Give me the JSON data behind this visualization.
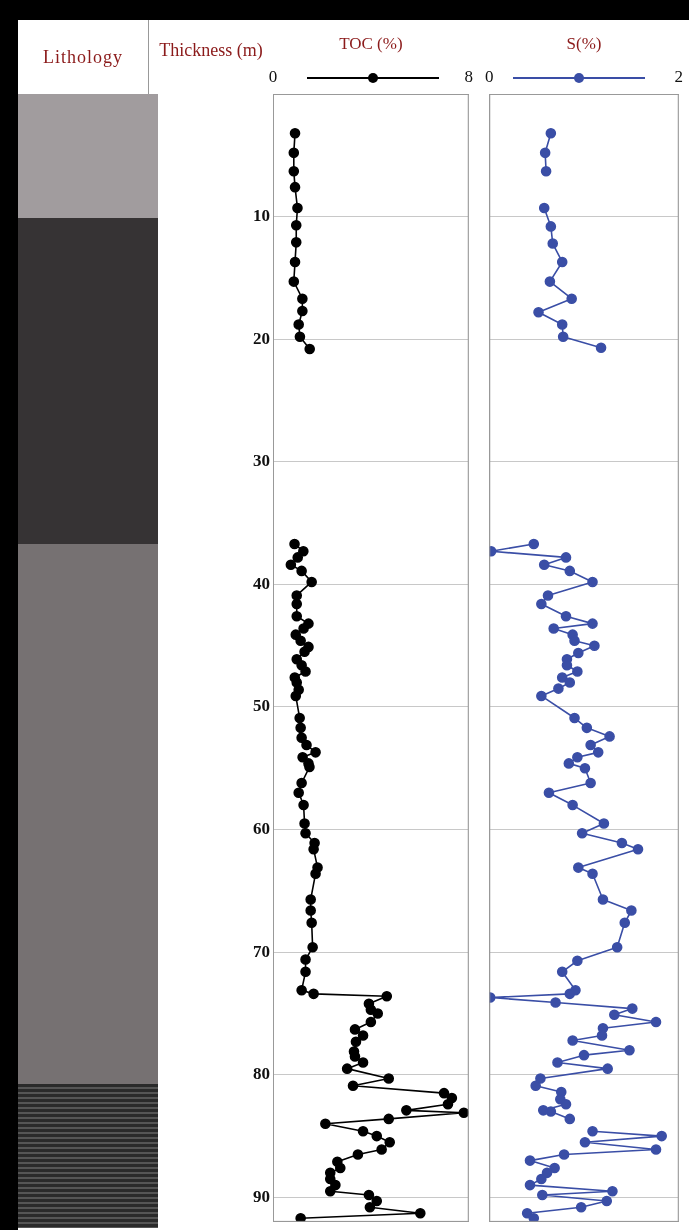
{
  "chart_data": [
    {
      "type": "line",
      "orientation": "horizontal",
      "xlabel": "TOC (%)",
      "ylabel": "Thickness (m)",
      "annotations": [
        "Lithology"
      ],
      "xlim": [
        0,
        8
      ],
      "xticks": [
        0,
        8
      ],
      "ylim": [
        92,
        0
      ],
      "yticks": [
        10,
        20,
        30,
        40,
        50,
        60,
        70,
        80,
        90
      ],
      "grid": true,
      "legend": false,
      "marker": "circle",
      "line_style": "solid",
      "series": [
        {
          "color": "#000000",
          "x": [
            3.2,
            4.8,
            6.3,
            7.6,
            9.3,
            10.7,
            12.1,
            13.7,
            15.3,
            16.7,
            17.7,
            18.8,
            19.8,
            20.8,
            28,
            36.7,
            37.3,
            37.8,
            38.4,
            38.9,
            39.8,
            40.9,
            41.6,
            42.6,
            43.2,
            43.6,
            44.1,
            44.6,
            45.1,
            45.5,
            46.1,
            46.6,
            47.1,
            47.6,
            48.0,
            48.6,
            49.1,
            50.9,
            51.7,
            52.5,
            53.1,
            53.7,
            54.1,
            54.6,
            54.9,
            56.2,
            57.0,
            58.0,
            59.5,
            60.3,
            61.1,
            61.6,
            63.1,
            63.6,
            65.7,
            66.6,
            67.6,
            69.6,
            70.6,
            71.6,
            73.1,
            73.4,
            73.6,
            74.2,
            74.7,
            75.0,
            75.7,
            76.3,
            76.8,
            77.3,
            78.1,
            78.5,
            79.0,
            79.5,
            80.3,
            80.9,
            81.5,
            81.9,
            82.4,
            82.9,
            83.1,
            83.6,
            84.0,
            84.6,
            85.0,
            85.5,
            86.1,
            86.5,
            87.1,
            87.6,
            88.0,
            88.5,
            89.0,
            89.5,
            89.8,
            90.3,
            90.8,
            91.3,
            91.7
          ],
          "values": [
            0.9,
            0.85,
            0.85,
            0.9,
            1.0,
            0.95,
            0.95,
            0.9,
            0.85,
            1.2,
            1.2,
            1.05,
            1.1,
            1.5,
            null,
            0.88,
            1.24,
            1.01,
            0.73,
            1.17,
            1.58,
            0.97,
            0.97,
            0.97,
            1.45,
            1.25,
            0.93,
            1.13,
            1.45,
            1.29,
            0.97,
            1.17,
            1.33,
            0.89,
            0.97,
            1.05,
            0.93,
            1.09,
            1.13,
            1.17,
            1.37,
            1.74,
            1.21,
            1.45,
            1.49,
            1.17,
            1.05,
            1.25,
            1.29,
            1.33,
            1.7,
            1.66,
            1.82,
            1.74,
            1.54,
            1.54,
            1.58,
            1.62,
            1.33,
            1.33,
            1.17,
            1.66,
            4.65,
            3.92,
            4.0,
            4.28,
            4.0,
            3.35,
            3.68,
            3.39,
            3.31,
            3.35,
            3.68,
            3.03,
            4.73,
            3.27,
            6.99,
            7.31,
            7.15,
            5.45,
            7.8,
            4.73,
            2.14,
            3.68,
            4.24,
            4.77,
            4.44,
            3.47,
            2.63,
            2.75,
            2.34,
            2.34,
            2.55,
            2.34,
            3.92,
            4.24,
            3.96,
            6.02,
            1.13
          ]
        }
      ]
    },
    {
      "type": "line",
      "orientation": "horizontal",
      "xlabel": "S(%)",
      "xlim": [
        0,
        2
      ],
      "xticks": [
        0,
        2
      ],
      "ylim": [
        92,
        0
      ],
      "yticks": [
        10,
        20,
        30,
        40,
        50,
        60,
        70,
        80,
        90
      ],
      "tick_labels": "x",
      "grid": true,
      "legend": false,
      "marker": "circle",
      "line_style": "solid",
      "series": [
        {
          "color": "#3a4ea6",
          "x": [
            3.2,
            4.8,
            6.3,
            7.7,
            9.3,
            10.8,
            12.2,
            13.7,
            15.3,
            16.7,
            17.8,
            18.8,
            19.8,
            20.7,
            28,
            36.7,
            37.3,
            37.8,
            38.4,
            38.9,
            39.8,
            40.9,
            41.6,
            42.6,
            43.2,
            43.6,
            44.1,
            44.6,
            45.0,
            45.6,
            46.1,
            46.6,
            47.1,
            47.6,
            48.0,
            48.5,
            49.1,
            50.9,
            51.7,
            52.4,
            53.1,
            53.7,
            54.1,
            54.6,
            55.0,
            56.2,
            57.0,
            58.0,
            59.5,
            60.3,
            61.1,
            61.6,
            63.1,
            63.6,
            65.7,
            66.6,
            67.6,
            69.6,
            70.7,
            71.6,
            73.1,
            73.4,
            73.7,
            74.1,
            74.6,
            75.1,
            75.7,
            76.2,
            76.8,
            77.2,
            78.0,
            78.4,
            79.0,
            79.5,
            80.3,
            80.9,
            81.4,
            82.0,
            82.4,
            82.9,
            83.0,
            83.6,
            84.0,
            84.6,
            85.0,
            85.5,
            86.1,
            86.5,
            87.0,
            87.6,
            88.0,
            88.5,
            89.0,
            89.5,
            89.8,
            90.3,
            90.8,
            91.3,
            91.7
          ],
          "values": [
            0.65,
            0.59,
            0.6,
            null,
            0.58,
            0.65,
            0.67,
            0.77,
            0.64,
            0.87,
            0.52,
            0.77,
            0.78,
            1.18,
            null,
            0.47,
            0.02,
            0.81,
            0.58,
            0.85,
            1.09,
            0.62,
            0.55,
            0.81,
            1.09,
            0.68,
            0.88,
            0.9,
            1.11,
            0.94,
            0.82,
            0.82,
            0.93,
            0.77,
            0.85,
            0.73,
            0.55,
            0.9,
            1.03,
            1.27,
            1.07,
            1.15,
            0.93,
            0.84,
            1.01,
            1.07,
            0.63,
            0.88,
            1.21,
            0.98,
            1.4,
            1.57,
            0.94,
            1.09,
            1.2,
            1.5,
            1.43,
            1.35,
            0.93,
            0.77,
            0.91,
            0.85,
            0.01,
            0.7,
            1.51,
            1.32,
            1.76,
            1.2,
            1.19,
            0.88,
            1.48,
            1.0,
            0.72,
            1.25,
            0.54,
            0.49,
            0.76,
            0.75,
            0.81,
            0.57,
            0.65,
            0.85,
            null,
            1.09,
            1.82,
            1.01,
            1.76,
            0.79,
            0.43,
            0.69,
            0.61,
            0.55,
            0.43,
            1.3,
            0.56,
            1.24,
            0.97,
            0.4,
            0.47
          ]
        }
      ]
    }
  ]
}
